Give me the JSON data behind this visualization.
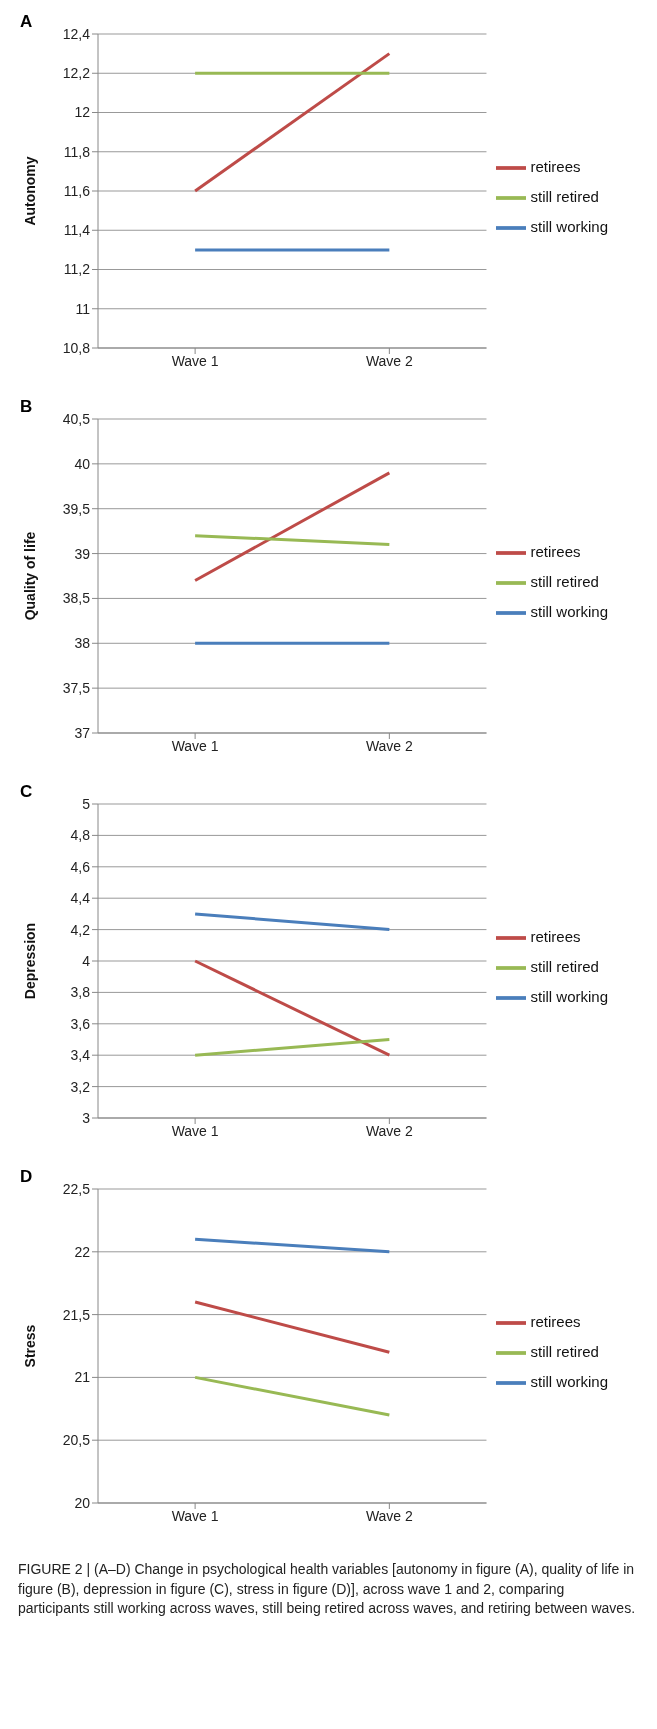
{
  "chart_data": [
    {
      "type": "line",
      "title": "A",
      "ylabel": "Autonomy",
      "categories": [
        "Wave 1",
        "Wave 2"
      ],
      "series": [
        {
          "name": "still working",
          "color": "#4a7ebb",
          "values": [
            11.3,
            11.3
          ]
        },
        {
          "name": "retirees",
          "color": "#be4b48",
          "values": [
            11.6,
            12.3
          ]
        },
        {
          "name": "still retired",
          "color": "#98b954",
          "values": [
            12.2,
            12.2
          ]
        }
      ],
      "ylim": [
        10.8,
        12.4
      ],
      "yticks": [
        {
          "value": 10.8,
          "label": "10,8"
        },
        11,
        {
          "value": 11.2,
          "label": "11,2"
        },
        {
          "value": 11.4,
          "label": "11,4"
        },
        {
          "value": 11.6,
          "label": "11,6"
        },
        {
          "value": 11.8,
          "label": "11,8"
        },
        12,
        {
          "value": 12.2,
          "label": "12,2"
        },
        {
          "value": 12.4,
          "label": "12,4"
        }
      ],
      "grid": "y",
      "legend": "right",
      "marker": "none",
      "line_style": "solid"
    },
    {
      "type": "line",
      "title": "B",
      "ylabel": "Quality of life",
      "categories": [
        "Wave 1",
        "Wave 2"
      ],
      "series": [
        {
          "name": "still working",
          "color": "#4a7ebb",
          "values": [
            38,
            38
          ]
        },
        {
          "name": "retirees",
          "color": "#be4b48",
          "values": [
            38.7,
            39.9
          ]
        },
        {
          "name": "still retired",
          "color": "#98b954",
          "values": [
            39.2,
            39.1
          ]
        }
      ],
      "ylim": [
        37,
        40.5
      ],
      "yticks": [
        37,
        {
          "value": 37.5,
          "label": "37,5"
        },
        38,
        {
          "value": 38.5,
          "label": "38,5"
        },
        39,
        {
          "value": 39.5,
          "label": "39,5"
        },
        40,
        {
          "value": 40.5,
          "label": "40,5"
        }
      ],
      "grid": "y",
      "legend": "right",
      "marker": "none",
      "line_style": "solid"
    },
    {
      "type": "line",
      "title": "C",
      "ylabel": "Depression",
      "categories": [
        "Wave 1",
        "Wave 2"
      ],
      "series": [
        {
          "name": "still working",
          "color": "#4a7ebb",
          "values": [
            4.3,
            4.2
          ]
        },
        {
          "name": "retirees",
          "color": "#be4b48",
          "values": [
            4.0,
            3.4
          ]
        },
        {
          "name": "still retired",
          "color": "#98b954",
          "values": [
            3.4,
            3.5
          ]
        }
      ],
      "ylim": [
        3,
        5
      ],
      "yticks": [
        3,
        {
          "value": 3.2,
          "label": "3,2"
        },
        {
          "value": 3.4,
          "label": "3,4"
        },
        {
          "value": 3.6,
          "label": "3,6"
        },
        {
          "value": 3.8,
          "label": "3,8"
        },
        4,
        {
          "value": 4.2,
          "label": "4,2"
        },
        {
          "value": 4.4,
          "label": "4,4"
        },
        {
          "value": 4.6,
          "label": "4,6"
        },
        {
          "value": 4.8,
          "label": "4,8"
        },
        5
      ],
      "grid": "y",
      "legend": "right",
      "marker": "none",
      "line_style": "solid"
    },
    {
      "type": "line",
      "title": "D",
      "ylabel": "Stress",
      "categories": [
        "Wave 1",
        "Wave 2"
      ],
      "series": [
        {
          "name": "still working",
          "color": "#4a7ebb",
          "values": [
            22.1,
            22.0
          ]
        },
        {
          "name": "retirees",
          "color": "#be4b48",
          "values": [
            21.6,
            21.2
          ]
        },
        {
          "name": "still retired",
          "color": "#98b954",
          "values": [
            21.0,
            20.7
          ]
        }
      ],
      "ylim": [
        20,
        22.5
      ],
      "yticks": [
        20,
        {
          "value": 20.5,
          "label": "20,5"
        },
        21,
        {
          "value": 21.5,
          "label": "21,5"
        },
        22,
        {
          "value": 22.5,
          "label": "22,5"
        }
      ],
      "grid": "y",
      "legend": "right",
      "marker": "none",
      "line_style": "solid",
      "annotations": [
        "FIGURE 2 | (A–D) Change in psychological health variables [autonomy in figure (A), quality of life in figure (B), depression in figure (C), stress in figure (D)], across wave 1 and 2, comparing participants still working across waves, still being retired across waves, and retiring between waves."
      ]
    }
  ]
}
